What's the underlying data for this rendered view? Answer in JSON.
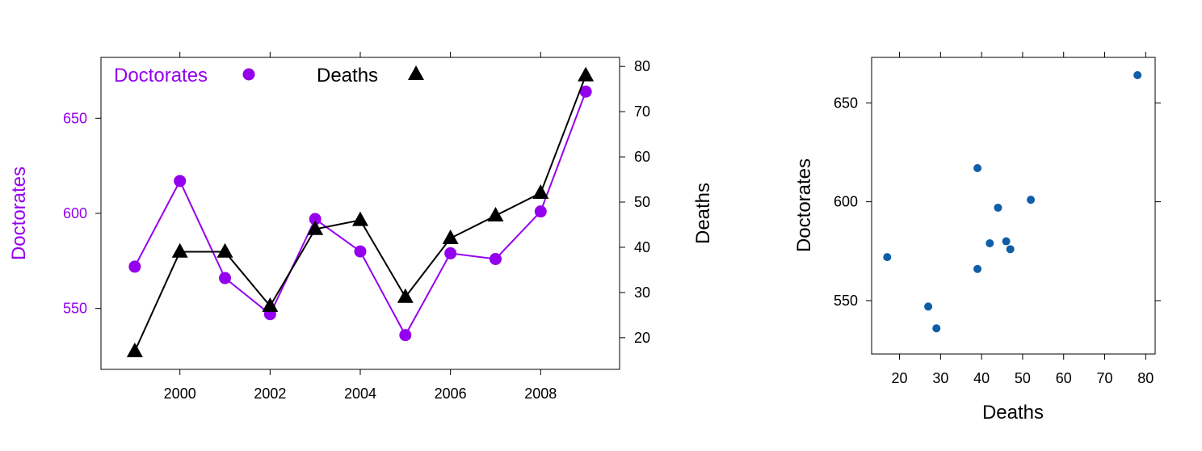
{
  "chart_data": [
    {
      "type": "line",
      "x": [
        1999,
        2000,
        2001,
        2002,
        2003,
        2004,
        2005,
        2006,
        2007,
        2008,
        2009
      ],
      "series": [
        {
          "name": "Doctorates",
          "axis": "left",
          "color": "#9400ED",
          "marker": "circle",
          "values": [
            572,
            617,
            566,
            547,
            597,
            580,
            536,
            579,
            576,
            601,
            664
          ]
        },
        {
          "name": "Deaths",
          "axis": "right",
          "color": "#000000",
          "marker": "triangle",
          "values": [
            17,
            39,
            39,
            27,
            44,
            46,
            29,
            42,
            47,
            52,
            78
          ]
        }
      ],
      "xlim": [
        1998.25,
        2009.75
      ],
      "ylim_left": [
        518,
        682
      ],
      "ylim_right": [
        13,
        82
      ],
      "x_ticks": [
        2000,
        2002,
        2004,
        2006,
        2008
      ],
      "y_ticks_left": [
        550,
        600,
        650
      ],
      "y_ticks_right": [
        20,
        30,
        40,
        50,
        60,
        70,
        80
      ],
      "ylabel_left": "Doctorates",
      "ylabel_right": "Deaths",
      "legend_position": "top",
      "grid": false
    },
    {
      "type": "scatter",
      "color": "#0E5EA8",
      "points": [
        {
          "x": 17,
          "y": 572
        },
        {
          "x": 39,
          "y": 617
        },
        {
          "x": 39,
          "y": 566
        },
        {
          "x": 27,
          "y": 547
        },
        {
          "x": 44,
          "y": 597
        },
        {
          "x": 46,
          "y": 580
        },
        {
          "x": 29,
          "y": 536
        },
        {
          "x": 42,
          "y": 579
        },
        {
          "x": 47,
          "y": 576
        },
        {
          "x": 52,
          "y": 601
        },
        {
          "x": 78,
          "y": 664
        }
      ],
      "xlim": [
        13.2,
        82.3
      ],
      "ylim": [
        523,
        673
      ],
      "x_ticks": [
        20,
        30,
        40,
        50,
        60,
        70,
        80
      ],
      "y_ticks": [
        550,
        600,
        650
      ],
      "xlabel": "Deaths",
      "ylabel": "Doctorates",
      "grid": false
    }
  ]
}
